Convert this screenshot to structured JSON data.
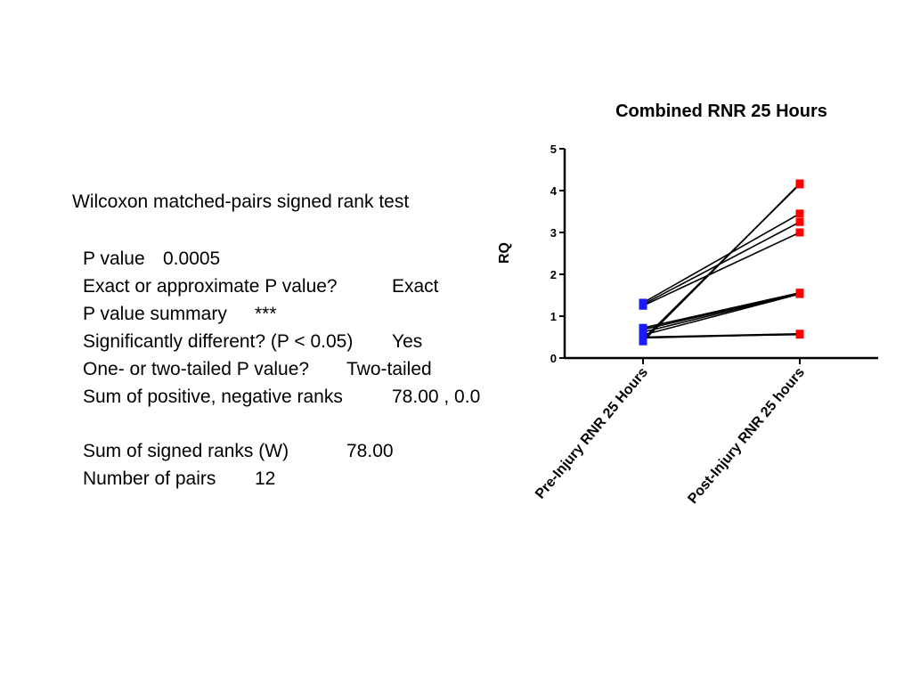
{
  "stats": {
    "title": "Wilcoxon matched-pairs signed rank test",
    "rows": [
      {
        "label": "P value",
        "value": "0.0005"
      },
      {
        "label": "Exact or approximate P value?",
        "value": "Exact"
      },
      {
        "label": "P value summary",
        "value": "***"
      },
      {
        "label": "Significantly different? (P < 0.05)",
        "value": "Yes"
      },
      {
        "label": "One- or two-tailed P value?",
        "value": "Two-tailed"
      },
      {
        "label": "Sum of positive, negative ranks",
        "value": "78.00 , 0.0"
      },
      {
        "label": "Sum of signed ranks (W)",
        "value": "78.00"
      },
      {
        "label": "Number of pairs",
        "value": "12"
      }
    ]
  },
  "chart_data": {
    "type": "line",
    "title": "Combined RNR 25 Hours",
    "ylabel": "RQ",
    "xlabel": "",
    "categories": [
      "Pre-Injury RNR 25 Hours",
      "Post-Injury RNR 25 hours"
    ],
    "ylim": [
      0,
      5
    ],
    "yticks": [
      "0",
      "1",
      "2",
      "3",
      "4",
      "5"
    ],
    "grid": false,
    "marker_colors": [
      "#1a1aff",
      "#ff0000"
    ],
    "line_color": "#000000",
    "pairs": [
      [
        1.32,
        3.45
      ],
      [
        1.28,
        3.25
      ],
      [
        1.25,
        3.0
      ],
      [
        0.72,
        1.56
      ],
      [
        0.68,
        1.55
      ],
      [
        0.62,
        1.54
      ],
      [
        0.55,
        1.53
      ],
      [
        0.5,
        0.58
      ],
      [
        0.48,
        0.57
      ],
      [
        0.5,
        0.56
      ],
      [
        0.45,
        4.15
      ],
      [
        0.4,
        4.17
      ]
    ]
  }
}
